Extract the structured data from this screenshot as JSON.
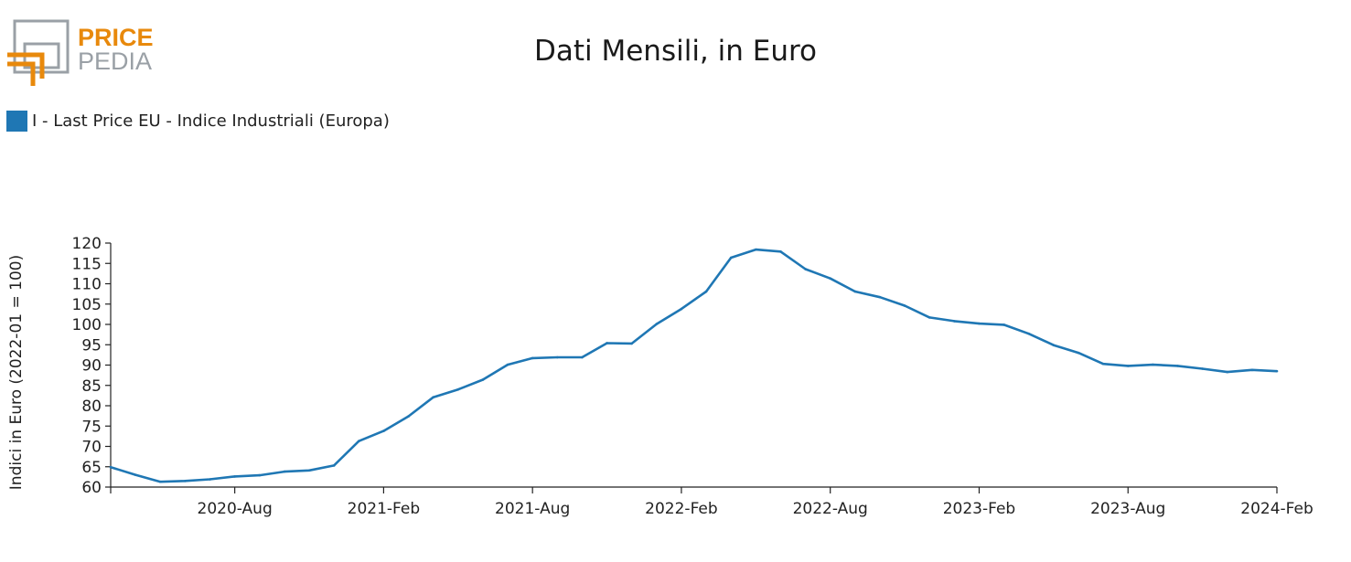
{
  "logo": {
    "line1": "PRICE",
    "line2": "PEDIA",
    "orange": "#e8890c",
    "gray": "#9aa0a6"
  },
  "chart_data": {
    "type": "line",
    "title": "Dati Mensili, in Euro",
    "xlabel": "",
    "ylabel": "Indici in Euro (2022-01 = 100)",
    "x": [
      "2020-03",
      "2020-04",
      "2020-05",
      "2020-06",
      "2020-07",
      "2020-08",
      "2020-09",
      "2020-10",
      "2020-11",
      "2020-12",
      "2021-01",
      "2021-02",
      "2021-03",
      "2021-04",
      "2021-05",
      "2021-06",
      "2021-07",
      "2021-08",
      "2021-09",
      "2021-10",
      "2021-11",
      "2021-12",
      "2022-01",
      "2022-02",
      "2022-03",
      "2022-04",
      "2022-05",
      "2022-06",
      "2022-07",
      "2022-08",
      "2022-09",
      "2022-10",
      "2022-11",
      "2022-12",
      "2023-01",
      "2023-02",
      "2023-03",
      "2023-04",
      "2023-05",
      "2023-06",
      "2023-07",
      "2023-08",
      "2023-09",
      "2023-10",
      "2023-11",
      "2023-12",
      "2024-01",
      "2024-02"
    ],
    "xticks": [
      "2020-Aug",
      "2021-Feb",
      "2021-Aug",
      "2022-Feb",
      "2022-Aug",
      "2023-Feb",
      "2023-Aug",
      "2024-Feb"
    ],
    "yticks": [
      60,
      65,
      70,
      75,
      80,
      85,
      90,
      95,
      100,
      105,
      110,
      115,
      120
    ],
    "ylim": [
      60,
      120
    ],
    "grid": false,
    "legend_position": "top-left",
    "series": [
      {
        "name": "I - Last Price EU - Indice Industriali (Europa)",
        "color": "#1f77b4",
        "values": [
          64.9,
          63.0,
          61.3,
          61.5,
          61.9,
          62.6,
          62.9,
          63.8,
          64.1,
          65.3,
          71.3,
          73.8,
          77.4,
          82.1,
          84.0,
          86.4,
          90.1,
          91.7,
          91.9,
          91.9,
          95.4,
          95.3,
          100.1,
          103.8,
          108.1,
          116.4,
          118.4,
          117.9,
          113.6,
          111.3,
          108.1,
          106.7,
          104.6,
          101.7,
          100.8,
          100.2,
          99.9,
          97.7,
          94.9,
          93.0,
          90.3,
          89.8,
          90.1,
          89.8,
          89.1,
          88.3,
          88.8,
          88.5
        ]
      }
    ]
  }
}
